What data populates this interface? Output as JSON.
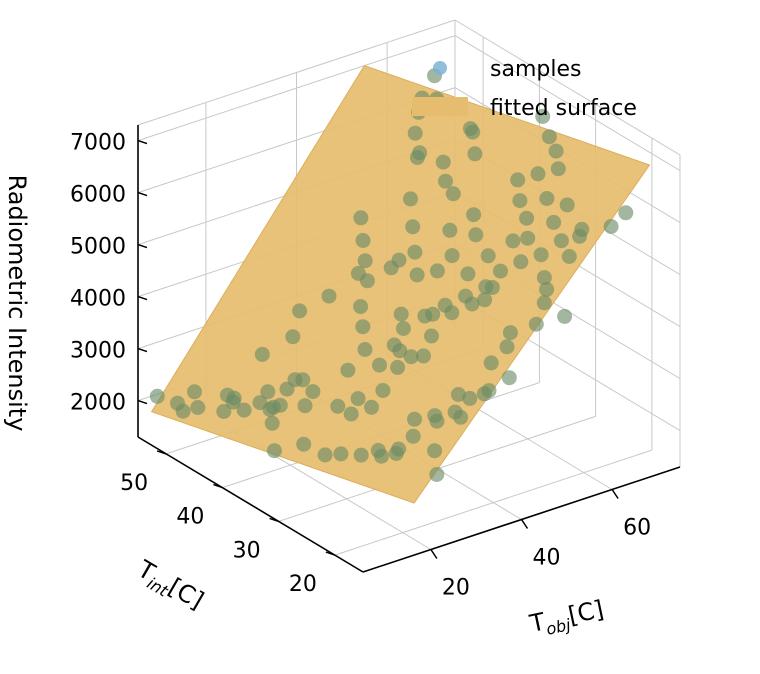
{
  "chart_data": {
    "type": "scatter",
    "projection": "3d",
    "zlabel": "Radiometric Intensity",
    "xlabel": {
      "main": "T",
      "sub": "obj",
      "unit": "[C]"
    },
    "ylabel": {
      "main": "T",
      "sub": "int",
      "unit": "[C]"
    },
    "x_ticks": [
      "20",
      "40",
      "60"
    ],
    "y_ticks": [
      "20",
      "30",
      "40",
      "50"
    ],
    "z_ticks": [
      "2000",
      "3000",
      "4000",
      "5000",
      "6000",
      "7000"
    ],
    "xlim": [
      5,
      75
    ],
    "ylim": [
      15,
      55
    ],
    "zlim": [
      1300,
      7300
    ],
    "grid": true,
    "legend_position": "top-right",
    "legend": [
      {
        "label": "samples",
        "kind": "marker",
        "color": "#7fb2d5"
      },
      {
        "label": "fitted surface",
        "kind": "patch",
        "color": "#e6bd6f"
      }
    ],
    "surface": {
      "z_corners": [
        {
          "x": 8,
          "y": 55,
          "z": 1700
        },
        {
          "x": 20,
          "y": 18,
          "z": 2000
        },
        {
          "x": 72,
          "y": 18,
          "z": 7000
        },
        {
          "x": 55,
          "y": 55,
          "z": 7000
        }
      ]
    },
    "samples": [
      [
        8.9,
        54.7,
        1990
      ],
      [
        10,
        52,
        2000
      ],
      [
        12,
        50,
        1990
      ],
      [
        15,
        53,
        2010
      ],
      [
        16.8,
        48.6,
        2180
      ],
      [
        20,
        50,
        1940
      ],
      [
        22,
        47,
        1990
      ],
      [
        24,
        45,
        2010
      ],
      [
        12.6,
        53.1,
        1700
      ],
      [
        17.2,
        47.9,
        2080
      ],
      [
        28,
        38,
        2330
      ],
      [
        30,
        36,
        2550
      ],
      [
        33,
        34,
        2750
      ],
      [
        35,
        30,
        2400
      ],
      [
        37,
        28,
        2540
      ],
      [
        39,
        26,
        2680
      ],
      [
        41,
        25,
        2950
      ],
      [
        44,
        24,
        3080
      ],
      [
        46,
        22,
        3400
      ],
      [
        23,
        43,
        2480
      ],
      [
        25,
        40,
        2570
      ],
      [
        26,
        44,
        2510
      ],
      [
        24,
        41,
        2760
      ],
      [
        29,
        37,
        3060
      ],
      [
        31,
        33,
        3360
      ],
      [
        33,
        31,
        3710
      ],
      [
        35,
        33,
        3200
      ],
      [
        37,
        30,
        3560
      ],
      [
        38,
        33,
        3320
      ],
      [
        40,
        31,
        3790
      ],
      [
        42,
        29,
        4310
      ],
      [
        44,
        27,
        4550
      ],
      [
        46,
        25,
        4940
      ],
      [
        46,
        37,
        3610
      ],
      [
        48,
        35,
        3890
      ],
      [
        50,
        33,
        4140
      ],
      [
        52,
        31,
        4390
      ],
      [
        53,
        35,
        4350
      ],
      [
        55,
        33,
        4770
      ],
      [
        42,
        22,
        3800
      ],
      [
        43,
        20,
        4210
      ],
      [
        45,
        21,
        4360
      ],
      [
        47,
        18,
        4660
      ],
      [
        50,
        19,
        4920
      ],
      [
        52,
        17,
        4730
      ],
      [
        53,
        21,
        4960
      ],
      [
        55,
        23,
        5000
      ],
      [
        58,
        21,
        5450
      ],
      [
        58,
        26,
        5160
      ],
      [
        60,
        24,
        5500
      ],
      [
        62,
        22,
        5790
      ],
      [
        64,
        24,
        5470
      ],
      [
        66,
        20,
        5860
      ],
      [
        68,
        19,
        6130
      ],
      [
        60,
        30,
        5160
      ],
      [
        61,
        31,
        5450
      ],
      [
        62,
        33,
        5630
      ],
      [
        64,
        35,
        5840
      ],
      [
        66,
        33,
        6030
      ],
      [
        68,
        31,
        6200
      ],
      [
        70,
        33,
        6350
      ],
      [
        71,
        35,
        6470
      ],
      [
        72,
        37,
        6700
      ],
      [
        56,
        40,
        5480
      ],
      [
        58,
        43,
        5470
      ],
      [
        60,
        45,
        5650
      ],
      [
        62,
        41,
        6010
      ],
      [
        64,
        43,
        6240
      ],
      [
        66,
        45,
        6120
      ],
      [
        58,
        48,
        5600
      ],
      [
        60,
        50,
        5880
      ],
      [
        62,
        51,
        6160
      ],
      [
        64,
        52,
        6310
      ],
      [
        66,
        51,
        6300
      ],
      [
        68,
        53,
        6560
      ],
      [
        56,
        46,
        5880
      ],
      [
        44,
        40,
        4550
      ],
      [
        40,
        44,
        4150
      ],
      [
        36,
        46,
        3700
      ],
      [
        32,
        48,
        3400
      ],
      [
        28,
        46,
        3150
      ],
      [
        25,
        49,
        2700
      ],
      [
        20,
        44,
        2450
      ],
      [
        20,
        43,
        2220
      ],
      [
        16,
        40,
        2220
      ],
      [
        14,
        38,
        1880
      ],
      [
        18,
        36,
        2020
      ],
      [
        19,
        33,
        1980
      ],
      [
        20,
        31,
        2100
      ],
      [
        22,
        29,
        2150
      ],
      [
        24,
        27,
        2200
      ],
      [
        26,
        26,
        2260
      ],
      [
        27,
        30,
        2030
      ],
      [
        29,
        28,
        2130
      ],
      [
        31,
        27,
        2380
      ],
      [
        35,
        26,
        2620
      ],
      [
        32,
        24,
        2270
      ],
      [
        30,
        22,
        2000
      ],
      [
        40,
        36,
        3610
      ],
      [
        38,
        42,
        3700
      ],
      [
        34,
        38,
        3250
      ],
      [
        36,
        40,
        3500
      ],
      [
        42,
        44,
        3950
      ],
      [
        44,
        46,
        4150
      ],
      [
        46,
        48,
        4350
      ],
      [
        48,
        50,
        4600
      ],
      [
        50,
        42,
        4400
      ],
      [
        52,
        44,
        4700
      ],
      [
        54,
        46,
        5050
      ],
      [
        48,
        40,
        4150
      ],
      [
        46,
        43,
        4150
      ],
      [
        50,
        38,
        4300
      ],
      [
        54,
        39,
        4900
      ],
      [
        52,
        37,
        4600
      ],
      [
        56,
        36,
        4950
      ],
      [
        58,
        38,
        5150
      ],
      [
        48,
        28,
        4450
      ],
      [
        56,
        28,
        4950
      ],
      [
        58,
        31,
        5100
      ],
      [
        54,
        30,
        4700
      ],
      [
        38,
        20,
        3450
      ],
      [
        34,
        21,
        3050
      ],
      [
        36,
        23,
        3300
      ],
      [
        62,
        27,
        5600
      ],
      [
        63,
        29,
        5900
      ],
      [
        65,
        27,
        5850
      ],
      [
        22,
        39,
        2450
      ],
      [
        18,
        42,
        2300
      ],
      [
        16,
        45,
        2150
      ],
      [
        14,
        47,
        2050
      ],
      [
        38,
        36,
        3350
      ],
      [
        42,
        38,
        3700
      ],
      [
        44,
        34,
        3900
      ],
      [
        26,
        34,
        2500
      ],
      [
        28,
        32,
        2700
      ]
    ]
  }
}
